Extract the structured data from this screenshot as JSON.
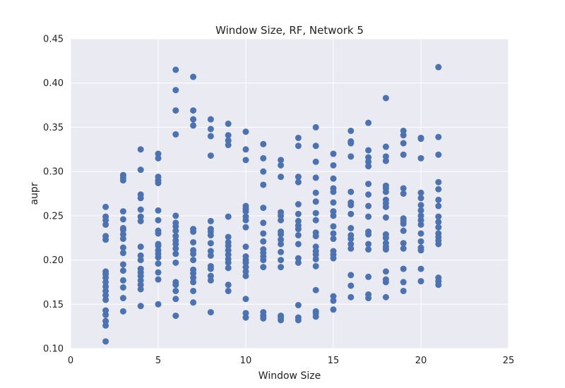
{
  "chart_data": {
    "type": "scatter",
    "title": "Window Size, RF, Network 5",
    "xlabel": "Window Size",
    "ylabel": "aupr",
    "xlim": [
      0,
      25
    ],
    "ylim": [
      0.1,
      0.45
    ],
    "xticks": [
      "0",
      "5",
      "10",
      "15",
      "20",
      "25"
    ],
    "yticks": [
      "0.10",
      "0.15",
      "0.20",
      "0.25",
      "0.30",
      "0.35",
      "0.40",
      "0.45"
    ],
    "grid": true,
    "marker_color": "#4c72b0",
    "background": "#eaeaf2",
    "groups": [
      {
        "x": 2,
        "y": [
          0.108,
          0.126,
          0.131,
          0.138,
          0.143,
          0.155,
          0.16,
          0.165,
          0.17,
          0.175,
          0.18,
          0.184,
          0.187,
          0.223,
          0.227,
          0.24,
          0.245,
          0.249,
          0.26
        ]
      },
      {
        "x": 3,
        "y": [
          0.142,
          0.157,
          0.169,
          0.177,
          0.188,
          0.195,
          0.208,
          0.214,
          0.224,
          0.229,
          0.234,
          0.236,
          0.246,
          0.255,
          0.29,
          0.293,
          0.296
        ]
      },
      {
        "x": 4,
        "y": [
          0.148,
          0.167,
          0.172,
          0.177,
          0.182,
          0.186,
          0.19,
          0.2,
          0.205,
          0.215,
          0.244,
          0.249,
          0.257,
          0.27,
          0.274,
          0.302,
          0.325
        ]
      },
      {
        "x": 5,
        "y": [
          0.15,
          0.178,
          0.186,
          0.196,
          0.203,
          0.207,
          0.211,
          0.216,
          0.218,
          0.23,
          0.233,
          0.245,
          0.256,
          0.287,
          0.29,
          0.294,
          0.315,
          0.32
        ]
      },
      {
        "x": 6,
        "y": [
          0.137,
          0.156,
          0.165,
          0.172,
          0.175,
          0.197,
          0.207,
          0.213,
          0.218,
          0.222,
          0.227,
          0.233,
          0.238,
          0.242,
          0.25,
          0.342,
          0.369,
          0.392,
          0.415
        ]
      },
      {
        "x": 7,
        "y": [
          0.152,
          0.165,
          0.175,
          0.18,
          0.185,
          0.189,
          0.2,
          0.207,
          0.211,
          0.22,
          0.232,
          0.235,
          0.352,
          0.359,
          0.369,
          0.407
        ]
      },
      {
        "x": 8,
        "y": [
          0.141,
          0.177,
          0.182,
          0.19,
          0.193,
          0.205,
          0.21,
          0.219,
          0.228,
          0.232,
          0.235,
          0.244,
          0.318,
          0.34,
          0.348,
          0.359
        ]
      },
      {
        "x": 9,
        "y": [
          0.165,
          0.172,
          0.191,
          0.197,
          0.201,
          0.206,
          0.211,
          0.216,
          0.22,
          0.226,
          0.249,
          0.33,
          0.335,
          0.341,
          0.354
        ]
      },
      {
        "x": 10,
        "y": [
          0.135,
          0.14,
          0.156,
          0.182,
          0.187,
          0.192,
          0.197,
          0.2,
          0.204,
          0.215,
          0.237,
          0.245,
          0.249,
          0.255,
          0.258,
          0.261,
          0.313,
          0.325,
          0.345
        ]
      },
      {
        "x": 11,
        "y": [
          0.134,
          0.137,
          0.141,
          0.192,
          0.2,
          0.204,
          0.208,
          0.212,
          0.221,
          0.23,
          0.242,
          0.259,
          0.285,
          0.3,
          0.315,
          0.331
        ]
      },
      {
        "x": 12,
        "y": [
          0.132,
          0.135,
          0.137,
          0.192,
          0.2,
          0.209,
          0.218,
          0.223,
          0.229,
          0.232,
          0.245,
          0.25,
          0.254,
          0.294,
          0.307,
          0.313
        ]
      },
      {
        "x": 13,
        "y": [
          0.132,
          0.135,
          0.149,
          0.197,
          0.202,
          0.218,
          0.228,
          0.235,
          0.239,
          0.244,
          0.252,
          0.263,
          0.288,
          0.294,
          0.329,
          0.338
        ]
      },
      {
        "x": 14,
        "y": [
          0.136,
          0.14,
          0.142,
          0.166,
          0.193,
          0.201,
          0.206,
          0.21,
          0.215,
          0.227,
          0.231,
          0.245,
          0.253,
          0.266,
          0.276,
          0.293,
          0.311,
          0.329,
          0.35
        ]
      },
      {
        "x": 15,
        "y": [
          0.144,
          0.154,
          0.159,
          0.202,
          0.206,
          0.21,
          0.224,
          0.23,
          0.238,
          0.25,
          0.255,
          0.265,
          0.277,
          0.281,
          0.292,
          0.307,
          0.32
        ]
      },
      {
        "x": 16,
        "y": [
          0.158,
          0.171,
          0.183,
          0.213,
          0.218,
          0.224,
          0.228,
          0.236,
          0.252,
          0.262,
          0.265,
          0.277,
          0.317,
          0.332,
          0.334,
          0.346
        ]
      },
      {
        "x": 17,
        "y": [
          0.157,
          0.161,
          0.181,
          0.212,
          0.218,
          0.229,
          0.232,
          0.249,
          0.261,
          0.274,
          0.286,
          0.306,
          0.311,
          0.316,
          0.324,
          0.355
        ]
      },
      {
        "x": 18,
        "y": [
          0.158,
          0.175,
          0.178,
          0.187,
          0.212,
          0.215,
          0.219,
          0.225,
          0.229,
          0.248,
          0.26,
          0.264,
          0.268,
          0.277,
          0.281,
          0.284,
          0.312,
          0.317,
          0.328,
          0.383
        ]
      },
      {
        "x": 19,
        "y": [
          0.165,
          0.175,
          0.19,
          0.213,
          0.219,
          0.233,
          0.241,
          0.244,
          0.247,
          0.275,
          0.281,
          0.319,
          0.332,
          0.341,
          0.346
        ]
      },
      {
        "x": 20,
        "y": [
          0.176,
          0.19,
          0.211,
          0.214,
          0.221,
          0.23,
          0.24,
          0.245,
          0.25,
          0.256,
          0.262,
          0.27,
          0.276,
          0.315,
          0.337,
          0.338
        ]
      },
      {
        "x": 21,
        "y": [
          0.172,
          0.176,
          0.18,
          0.218,
          0.222,
          0.226,
          0.23,
          0.237,
          0.243,
          0.249,
          0.261,
          0.268,
          0.28,
          0.288,
          0.319,
          0.339,
          0.418
        ]
      }
    ]
  }
}
